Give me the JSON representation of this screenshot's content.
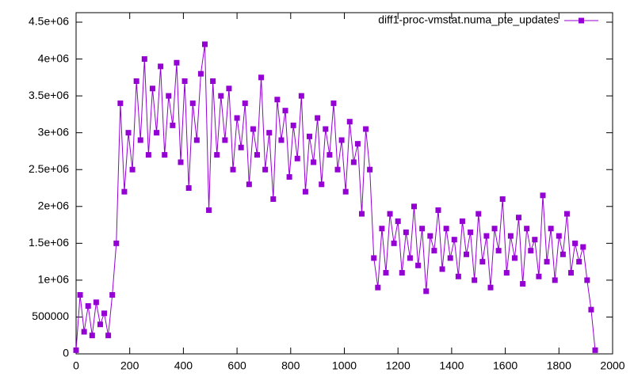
{
  "chart_data": {
    "type": "line",
    "series": [
      {
        "name": "diff1-proc-vmstat.numa_pte_updates",
        "color": "#9400d3",
        "x": [
          0,
          15,
          30,
          45,
          60,
          75,
          90,
          105,
          120,
          135,
          150,
          165,
          180,
          195,
          210,
          225,
          240,
          255,
          270,
          285,
          300,
          315,
          330,
          345,
          360,
          375,
          390,
          405,
          420,
          435,
          450,
          465,
          480,
          495,
          510,
          525,
          540,
          555,
          570,
          585,
          600,
          615,
          630,
          645,
          660,
          675,
          690,
          705,
          720,
          735,
          750,
          765,
          780,
          795,
          810,
          825,
          840,
          855,
          870,
          885,
          900,
          915,
          930,
          945,
          960,
          975,
          990,
          1005,
          1020,
          1035,
          1050,
          1065,
          1080,
          1095,
          1110,
          1125,
          1140,
          1155,
          1170,
          1185,
          1200,
          1215,
          1230,
          1245,
          1260,
          1275,
          1290,
          1305,
          1320,
          1335,
          1350,
          1365,
          1380,
          1395,
          1410,
          1425,
          1440,
          1455,
          1470,
          1485,
          1500,
          1515,
          1530,
          1545,
          1560,
          1575,
          1590,
          1605,
          1620,
          1635,
          1650,
          1665,
          1680,
          1695,
          1710,
          1725,
          1740,
          1755,
          1770,
          1785,
          1800,
          1815,
          1830,
          1845,
          1860,
          1875,
          1890,
          1905,
          1920,
          1935
        ],
        "values": [
          50000,
          800000,
          300000,
          650000,
          250000,
          700000,
          400000,
          550000,
          250000,
          800000,
          1500000,
          3400000,
          2200000,
          3000000,
          2500000,
          3700000,
          2900000,
          4000000,
          2700000,
          3600000,
          3000000,
          3900000,
          2700000,
          3500000,
          3100000,
          3950000,
          2600000,
          3700000,
          2250000,
          3400000,
          2900000,
          3800000,
          4200000,
          1950000,
          3700000,
          2700000,
          3500000,
          2900000,
          3600000,
          2500000,
          3200000,
          2800000,
          3400000,
          2300000,
          3050000,
          2700000,
          3750000,
          2500000,
          3000000,
          2100000,
          3450000,
          2900000,
          3300000,
          2400000,
          3100000,
          2650000,
          3500000,
          2200000,
          2950000,
          2600000,
          3200000,
          2300000,
          3050000,
          2700000,
          3400000,
          2500000,
          2900000,
          2200000,
          3150000,
          2600000,
          2850000,
          1900000,
          3050000,
          2500000,
          1300000,
          900000,
          1700000,
          1100000,
          1900000,
          1500000,
          1800000,
          1100000,
          1650000,
          1300000,
          2000000,
          1200000,
          1700000,
          850000,
          1600000,
          1400000,
          1950000,
          1150000,
          1700000,
          1300000,
          1550000,
          1050000,
          1800000,
          1350000,
          1650000,
          1000000,
          1900000,
          1250000,
          1600000,
          900000,
          1700000,
          1400000,
          2100000,
          1100000,
          1600000,
          1300000,
          1850000,
          950000,
          1700000,
          1400000,
          1550000,
          1050000,
          2150000,
          1250000,
          1700000,
          1000000,
          1600000,
          1350000,
          1900000,
          1100000,
          1500000,
          1250000,
          1450000,
          1000000,
          600000,
          50000
        ]
      }
    ],
    "xlim": [
      0,
      2000
    ],
    "xticks": [
      0,
      200,
      400,
      600,
      800,
      1000,
      1200,
      1400,
      1600,
      1800,
      2000
    ],
    "ylim": [
      0,
      4500000
    ],
    "yticks": [
      0,
      500000,
      {
        "value": 1000000,
        "label": "1e+06"
      },
      {
        "value": 1500000,
        "label": "1.5e+06"
      },
      {
        "value": 2000000,
        "label": "2e+06"
      },
      {
        "value": 2500000,
        "label": "2.5e+06"
      },
      {
        "value": 3000000,
        "label": "3e+06"
      },
      {
        "value": 3500000,
        "label": "3.5e+06"
      },
      {
        "value": 4000000,
        "label": "4e+06"
      },
      {
        "value": 4500000,
        "label": "4.5e+06"
      }
    ],
    "legend": "top-right"
  }
}
